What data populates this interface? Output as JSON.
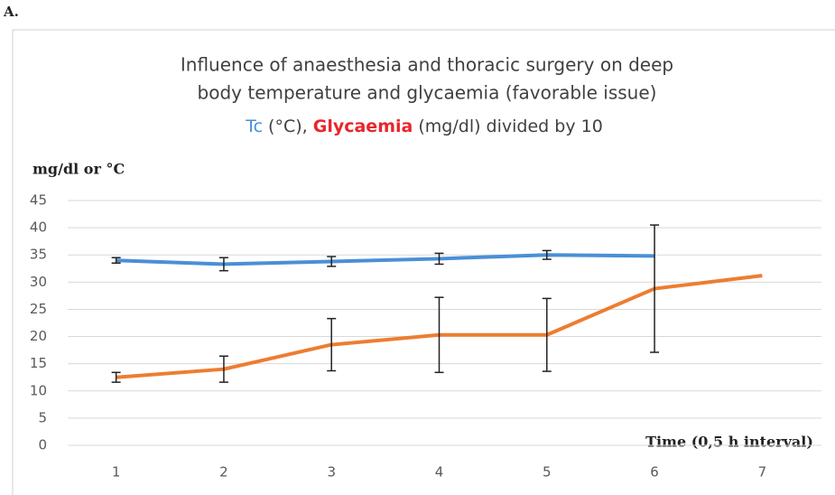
{
  "chart_data": {
    "type": "line",
    "panel_label": "A.",
    "title": [
      "Influence of anaesthesia and  thoracic surgery on deep",
      "body temperature and glycaemia (favorable issue)"
    ],
    "subtitle": [
      {
        "text": "Tc",
        "color": "#4a8fd6",
        "bold": false
      },
      {
        "text": " (°C), ",
        "color": "#404040",
        "bold": false
      },
      {
        "text": "Glycaemia",
        "color": "#e8262b",
        "bold": true
      },
      {
        "text": " (mg/dl) divided by 10",
        "color": "#404040",
        "bold": false
      }
    ],
    "y_label": "mg/dl or °C",
    "x_label": "Time (0,5 h interval)",
    "categories": [
      "1",
      "2",
      "3",
      "4",
      "5",
      "6",
      "7"
    ],
    "series": [
      {
        "name": "Tc",
        "color": "#4a8fd6",
        "values": [
          34,
          33.3,
          33.8,
          34.3,
          35,
          34.8,
          null
        ],
        "errors": [
          0.5,
          1.2,
          0.9,
          1.0,
          0.8,
          null,
          null
        ]
      },
      {
        "name": "Glycaemia",
        "color": "#ed7d31",
        "values": [
          12.5,
          14,
          18.5,
          20.3,
          20.3,
          28.8,
          31.2
        ],
        "errors": [
          0.9,
          2.4,
          4.8,
          6.9,
          6.7,
          11.7,
          null
        ]
      }
    ],
    "ylim": [
      0,
      45
    ],
    "yticks": [
      0,
      5,
      10,
      15,
      20,
      25,
      30,
      35,
      40,
      45
    ],
    "grid": true
  }
}
